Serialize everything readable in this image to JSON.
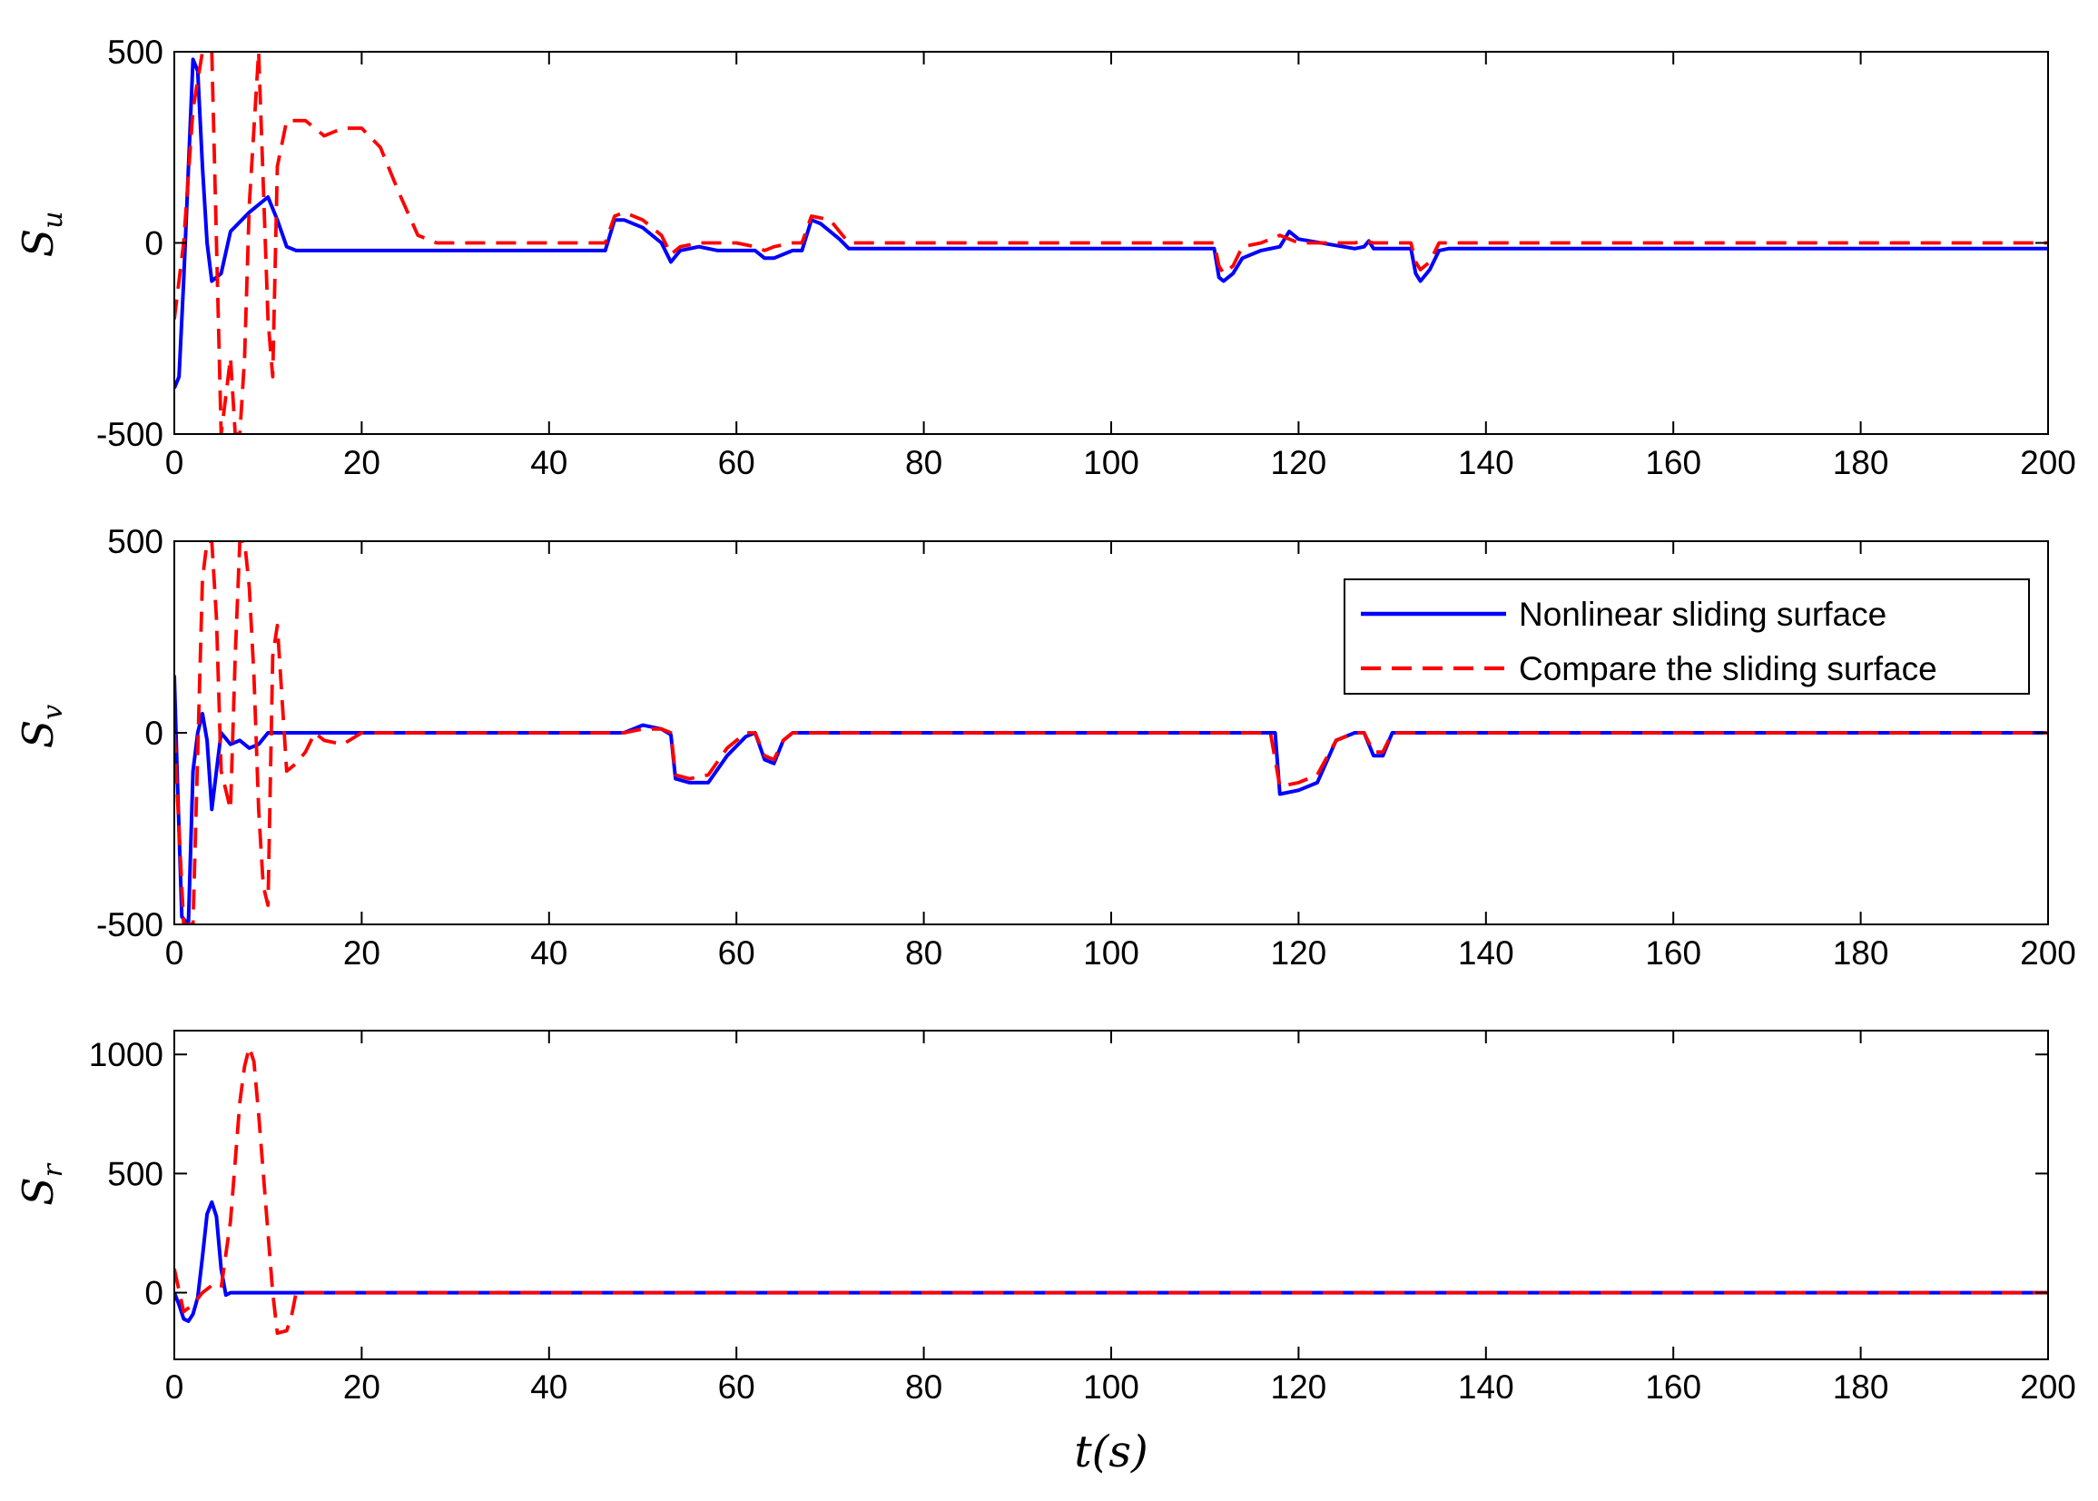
{
  "chart_data": [
    {
      "type": "line",
      "ylabel": {
        "symbol": "S",
        "subscript": "u"
      },
      "xlim": [
        0,
        200
      ],
      "ylim": [
        -500,
        500
      ],
      "xticks": [
        0,
        20,
        40,
        60,
        80,
        100,
        120,
        140,
        160,
        180,
        200
      ],
      "yticks": [
        -500,
        0,
        500
      ],
      "grid": false,
      "series": [
        {
          "name": "Nonlinear sliding surface",
          "color": "#0000ff",
          "style": "solid",
          "x": [
            0,
            0.5,
            1,
            2,
            2.5,
            3,
            3.5,
            4,
            5,
            6,
            8,
            10,
            11,
            12,
            13,
            20,
            30,
            40,
            46,
            47,
            48,
            50,
            52,
            53,
            54,
            56,
            58,
            60,
            62,
            63,
            64,
            66,
            67,
            68,
            69,
            71,
            72,
            80,
            100,
            111,
            111.5,
            112,
            113,
            114,
            116,
            118,
            119,
            120,
            126,
            127,
            127.5,
            128,
            132,
            132.5,
            133,
            134,
            135,
            136,
            150,
            200
          ],
          "y": [
            -380,
            -350,
            -100,
            480,
            450,
            200,
            0,
            -100,
            -80,
            30,
            80,
            120,
            60,
            -10,
            -20,
            -20,
            -20,
            -20,
            -20,
            60,
            60,
            40,
            0,
            -50,
            -20,
            -10,
            -20,
            -20,
            -20,
            -40,
            -40,
            -20,
            -20,
            60,
            50,
            10,
            -15,
            -15,
            -15,
            -15,
            -90,
            -100,
            -80,
            -40,
            -20,
            -10,
            30,
            10,
            -15,
            -10,
            5,
            -15,
            -15,
            -80,
            -100,
            -70,
            -20,
            -15,
            -15,
            -15
          ]
        },
        {
          "name": "Compare the sliding surface",
          "color": "#ff0000",
          "style": "dashed",
          "x": [
            0,
            1,
            2,
            3,
            4,
            5,
            5.5,
            6,
            6.5,
            7,
            7.5,
            8,
            9,
            10,
            10.5,
            11,
            12,
            14,
            16,
            18,
            20,
            22,
            24,
            26,
            28,
            40,
            46,
            47,
            48,
            50,
            52,
            53,
            54,
            56,
            60,
            62,
            63,
            64,
            66,
            67,
            68,
            70,
            71,
            72,
            80,
            110,
            111,
            111.5,
            112,
            113,
            114,
            116,
            118,
            119,
            120,
            126,
            127,
            128,
            132,
            132.5,
            133,
            134,
            135,
            136,
            150,
            200
          ],
          "y": [
            -200,
            0,
            350,
            500,
            500,
            -500,
            -400,
            -300,
            -500,
            -500,
            -300,
            100,
            500,
            -200,
            -350,
            200,
            320,
            320,
            280,
            300,
            300,
            250,
            130,
            20,
            0,
            0,
            0,
            70,
            80,
            60,
            20,
            -30,
            -10,
            0,
            0,
            -10,
            -20,
            -10,
            0,
            0,
            70,
            60,
            30,
            0,
            0,
            0,
            0,
            -60,
            -80,
            -60,
            -10,
            0,
            20,
            10,
            0,
            0,
            5,
            0,
            0,
            -50,
            -70,
            -50,
            0,
            0,
            0,
            0
          ]
        }
      ]
    },
    {
      "type": "line",
      "ylabel": {
        "symbol": "S",
        "subscript": "v"
      },
      "xlim": [
        0,
        200
      ],
      "ylim": [
        -500,
        500
      ],
      "xticks": [
        0,
        20,
        40,
        60,
        80,
        100,
        120,
        140,
        160,
        180,
        200
      ],
      "yticks": [
        -500,
        0,
        500
      ],
      "grid": false,
      "legend": {
        "location": "upper-right",
        "entries": [
          "Nonlinear sliding surface",
          "Compare the sliding surface"
        ]
      },
      "series": [
        {
          "name": "Nonlinear sliding surface",
          "color": "#0000ff",
          "style": "solid",
          "x": [
            0,
            0.3,
            0.8,
            1.5,
            2,
            2.5,
            3,
            3.5,
            4,
            4.5,
            5,
            6,
            7,
            8,
            9,
            10,
            11,
            12,
            20,
            40,
            48,
            50,
            52,
            53,
            53.5,
            55,
            57,
            59,
            61,
            62,
            63,
            64,
            65,
            66,
            80,
            100,
            117,
            117.5,
            118,
            120,
            122,
            124,
            126,
            127,
            128,
            129,
            130,
            150,
            200
          ],
          "y": [
            150,
            -100,
            -480,
            -500,
            -100,
            0,
            50,
            -20,
            -200,
            -100,
            0,
            -30,
            -20,
            -40,
            -30,
            0,
            0,
            0,
            0,
            0,
            0,
            20,
            10,
            -5,
            -120,
            -130,
            -130,
            -60,
            -10,
            0,
            -70,
            -80,
            -20,
            0,
            0,
            0,
            0,
            0,
            -160,
            -150,
            -130,
            -20,
            0,
            0,
            -60,
            -60,
            0,
            0,
            0
          ]
        },
        {
          "name": "Compare the sliding surface",
          "color": "#ff0000",
          "style": "dashed",
          "x": [
            0,
            1,
            2,
            3,
            3.5,
            4,
            4.5,
            5,
            5.5,
            6,
            6.5,
            7,
            7.5,
            8,
            8.5,
            9,
            9.5,
            10,
            10.5,
            11,
            12,
            13,
            14,
            15,
            16,
            18,
            20,
            40,
            48,
            50,
            52,
            53,
            53.5,
            55,
            57,
            59,
            61,
            62,
            63,
            64,
            65,
            66,
            80,
            100,
            117,
            118,
            120,
            122,
            124,
            126,
            127,
            128,
            129,
            130,
            150,
            200
          ],
          "y": [
            0,
            -500,
            -500,
            400,
            500,
            500,
            300,
            -100,
            -150,
            -200,
            200,
            500,
            500,
            380,
            150,
            -200,
            -400,
            -450,
            200,
            280,
            -100,
            -80,
            -50,
            0,
            -20,
            -30,
            0,
            0,
            0,
            10,
            10,
            0,
            -110,
            -120,
            -110,
            -40,
            0,
            0,
            -60,
            -70,
            -20,
            0,
            0,
            0,
            0,
            -140,
            -130,
            -110,
            -20,
            0,
            0,
            -50,
            -50,
            0,
            0,
            0
          ]
        }
      ]
    },
    {
      "type": "line",
      "ylabel": {
        "symbol": "S",
        "subscript": "r"
      },
      "xlabel": {
        "symbol": "t",
        "argument": "s"
      },
      "xlim": [
        0,
        200
      ],
      "ylim": [
        -280,
        1100
      ],
      "xticks": [
        0,
        20,
        40,
        60,
        80,
        100,
        120,
        140,
        160,
        180,
        200
      ],
      "yticks": [
        0,
        500,
        1000
      ],
      "grid": false,
      "series": [
        {
          "name": "Nonlinear sliding surface",
          "color": "#0000ff",
          "style": "solid",
          "x": [
            0,
            0.5,
            1,
            1.5,
            2,
            2.5,
            3,
            3.5,
            4,
            4.5,
            5,
            5.5,
            6,
            8,
            200
          ],
          "y": [
            0,
            -50,
            -110,
            -120,
            -90,
            -20,
            150,
            330,
            380,
            320,
            100,
            -10,
            0,
            0,
            0
          ]
        },
        {
          "name": "Compare the sliding surface",
          "color": "#ff0000",
          "style": "dashed",
          "x": [
            0,
            1,
            2,
            3,
            4,
            5,
            6,
            7,
            7.5,
            8,
            8.5,
            9,
            10,
            10.5,
            11,
            12,
            12.5,
            13,
            14,
            200
          ],
          "y": [
            100,
            -80,
            -50,
            0,
            30,
            20,
            300,
            800,
            950,
            1030,
            970,
            750,
            250,
            0,
            -170,
            -160,
            -100,
            0,
            0,
            0
          ]
        }
      ]
    }
  ]
}
